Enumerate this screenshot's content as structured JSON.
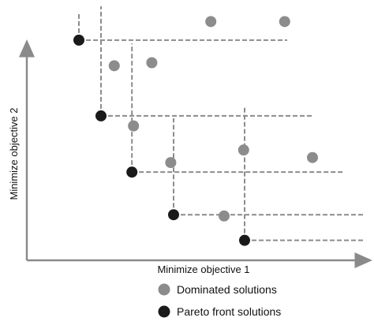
{
  "chart_data": {
    "type": "scatter",
    "xlabel": "Minimize objective 1",
    "ylabel": "Minimize objective 2",
    "xlim": [
      0,
      100
    ],
    "ylim": [
      0,
      100
    ],
    "grid": false,
    "legend_position": "bottom",
    "series": [
      {
        "name": "Dominated solutions",
        "color": "#8c8c8c",
        "points": [
          [
            55.8,
            91.4
          ],
          [
            79.2,
            91.4
          ],
          [
            25.2,
            73.8
          ],
          [
            37.1,
            75.0
          ],
          [
            31.3,
            49.8
          ],
          [
            66.2,
            40.2
          ],
          [
            43.1,
            35.2
          ],
          [
            88.0,
            37.2
          ],
          [
            60.0,
            13.9
          ]
        ]
      },
      {
        "name": "Pareto front solutions",
        "color": "#1a1a1a",
        "points": [
          [
            14.0,
            84.0
          ],
          [
            21.0,
            53.8
          ],
          [
            30.8,
            31.4
          ],
          [
            44.0,
            14.4
          ],
          [
            66.5,
            4.2
          ]
        ]
      }
    ],
    "dominance_lines": {
      "style": "dashed",
      "color": "#8c8c8c",
      "enabled": true
    },
    "legend": [
      {
        "label": "Dominated solutions",
        "color": "#8c8c8c"
      },
      {
        "label": "Pareto front solutions",
        "color": "#1a1a1a"
      }
    ]
  }
}
